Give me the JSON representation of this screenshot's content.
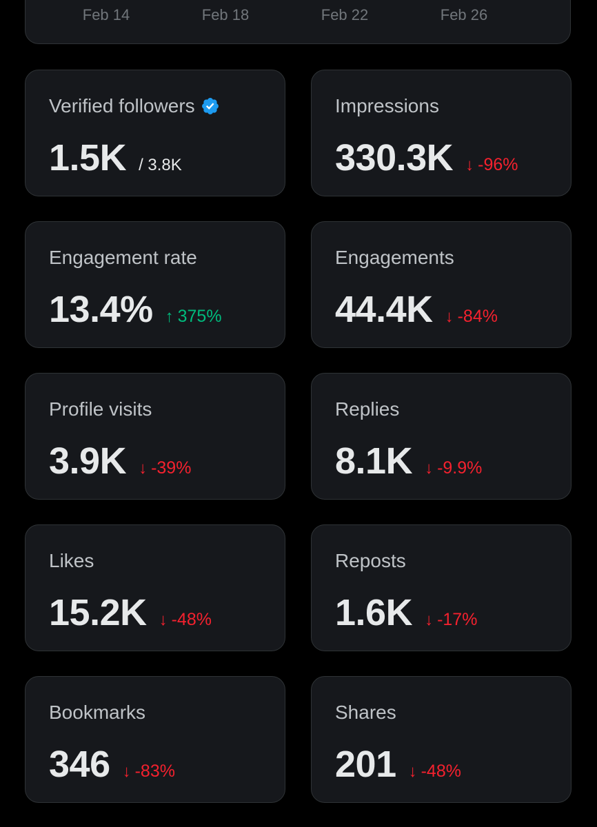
{
  "chart_axis": {
    "dates": [
      "Feb 14",
      "Feb 18",
      "Feb 22",
      "Feb 26"
    ]
  },
  "colors": {
    "background": "#000000",
    "card": "#16181c",
    "border": "#2f3336",
    "negative": "#f4212e",
    "positive": "#00ba7c",
    "verified": "#1d9bf0"
  },
  "icons": {
    "verified": "verified-badge-icon",
    "down": "↓",
    "up": "↑"
  },
  "metrics": {
    "verified_followers": {
      "label": "Verified followers",
      "value": "1.5K",
      "total": "/ 3.8K"
    },
    "impressions": {
      "label": "Impressions",
      "value": "330.3K",
      "change": "-96%"
    },
    "engagement_rate": {
      "label": "Engagement rate",
      "value": "13.4%",
      "change": "375%"
    },
    "engagements": {
      "label": "Engagements",
      "value": "44.4K",
      "change": "-84%"
    },
    "profile_visits": {
      "label": "Profile visits",
      "value": "3.9K",
      "change": "-39%"
    },
    "replies": {
      "label": "Replies",
      "value": "8.1K",
      "change": "-9.9%"
    },
    "likes": {
      "label": "Likes",
      "value": "15.2K",
      "change": "-48%"
    },
    "reposts": {
      "label": "Reposts",
      "value": "1.6K",
      "change": "-17%"
    },
    "bookmarks": {
      "label": "Bookmarks",
      "value": "346",
      "change": "-83%"
    },
    "shares": {
      "label": "Shares",
      "value": "201",
      "change": "-48%"
    }
  }
}
